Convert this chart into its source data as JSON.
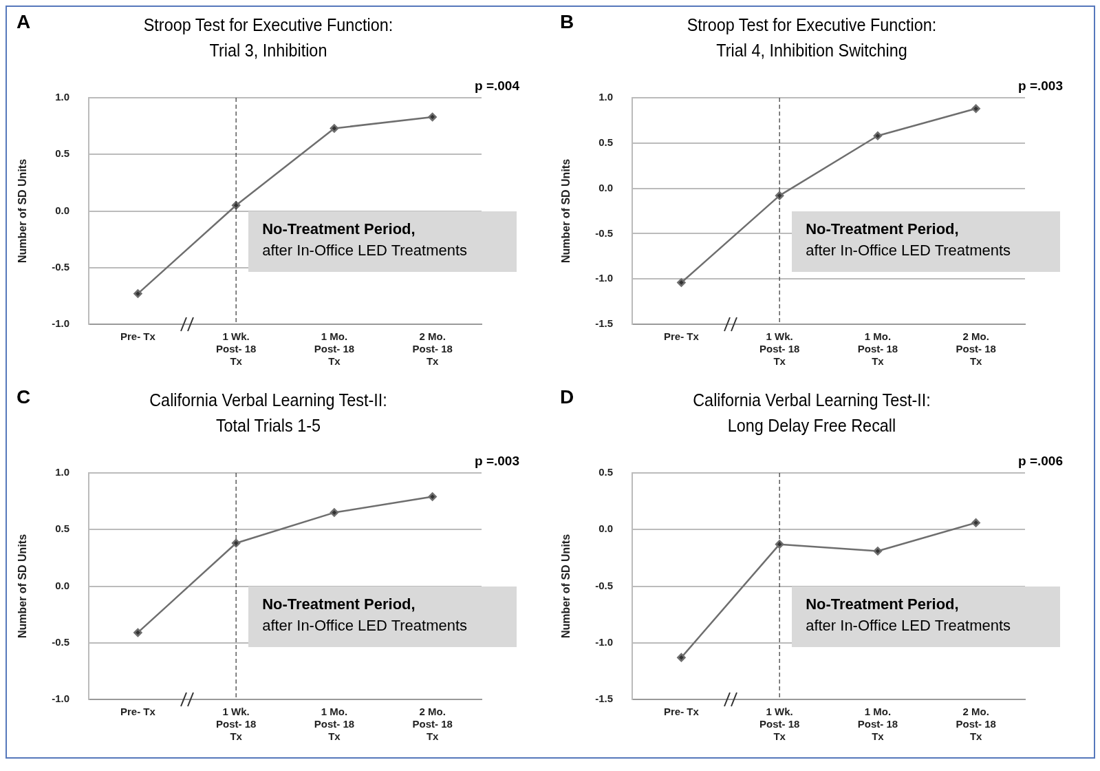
{
  "chart_data": [
    {
      "type": "line",
      "title": "Stroop Test for Executive Function:\nTrial 3, Inhibition",
      "ylabel": "Number of SD Units",
      "categories": [
        "Pre- Tx",
        "1 Wk. Post- 18 Tx",
        "1 Mo. Post- 18 Tx",
        "2 Mo. Post- 18 Tx"
      ],
      "series": [
        {
          "color": "#6e6e6e",
          "values": [
            -0.73,
            0.05,
            0.73,
            0.83
          ]
        }
      ],
      "ylim": [
        -1,
        1
      ],
      "yticks": [
        {
          "value": -1,
          "label": "-1.0"
        },
        {
          "value": -0.5,
          "label": "-0.5"
        },
        {
          "value": 0,
          "label": "0.0"
        },
        {
          "value": 0.5,
          "label": "0.5"
        },
        {
          "value": 1,
          "label": "1.0"
        }
      ],
      "grid": "y",
      "marker": "diamond",
      "ref_lines": [
        {
          "axis": "x",
          "value": "1 Wk. Post- 18 Tx",
          "color": "#333333",
          "line_style": "dashed"
        }
      ],
      "annotations": [
        "A",
        "p =.004",
        "No-Treatment Period,",
        "after In-Office LED Treatments"
      ]
    },
    {
      "type": "line",
      "title": "Stroop Test for Executive Function:\nTrial 4, Inhibition Switching",
      "ylabel": "Number of SD Units",
      "categories": [
        "Pre- Tx",
        "1 Wk. Post- 18 Tx",
        "1 Mo. Post- 18 Tx",
        "2 Mo. Post- 18 Tx"
      ],
      "series": [
        {
          "color": "#6e6e6e",
          "values": [
            -1.04,
            -0.08,
            0.58,
            0.88
          ]
        }
      ],
      "ylim": [
        -1.5,
        1
      ],
      "yticks": [
        {
          "value": -1.5,
          "label": "-1.5"
        },
        {
          "value": -1,
          "label": "-1.0"
        },
        {
          "value": -0.5,
          "label": "-0.5"
        },
        {
          "value": 0,
          "label": "0.0"
        },
        {
          "value": 0.5,
          "label": "0.5"
        },
        {
          "value": 1,
          "label": "1.0"
        }
      ],
      "grid": "y",
      "marker": "diamond",
      "ref_lines": [
        {
          "axis": "x",
          "value": "1 Wk. Post- 18 Tx",
          "color": "#333333",
          "line_style": "dashed"
        }
      ],
      "annotations": [
        "B",
        "p =.003",
        "No-Treatment Period,",
        "after In-Office LED Treatments"
      ]
    },
    {
      "type": "line",
      "title": "California Verbal Learning Test-II:\nTotal Trials 1-5",
      "ylabel": "Number of SD Units",
      "categories": [
        "Pre- Tx",
        "1 Wk. Post- 18 Tx",
        "1 Mo. Post- 18 Tx",
        "2 Mo. Post- 18 Tx"
      ],
      "series": [
        {
          "color": "#6e6e6e",
          "values": [
            -0.41,
            0.38,
            0.65,
            0.79
          ]
        }
      ],
      "ylim": [
        -1,
        1
      ],
      "yticks": [
        {
          "value": -1,
          "label": "-1.0"
        },
        {
          "value": -0.5,
          "label": "-0.5"
        },
        {
          "value": 0,
          "label": "0.0"
        },
        {
          "value": 0.5,
          "label": "0.5"
        },
        {
          "value": 1,
          "label": "1.0"
        }
      ],
      "grid": "y",
      "marker": "diamond",
      "ref_lines": [
        {
          "axis": "x",
          "value": "1 Wk. Post- 18 Tx",
          "color": "#333333",
          "line_style": "dashed"
        }
      ],
      "annotations": [
        "C",
        "p =.003",
        "No-Treatment Period,",
        "after In-Office LED Treatments"
      ]
    },
    {
      "type": "line",
      "title": "California Verbal Learning Test-II:\nLong Delay Free Recall",
      "ylabel": "Number of SD Units",
      "categories": [
        "Pre- Tx",
        "1 Wk. Post- 18 Tx",
        "1 Mo. Post- 18 Tx",
        "2 Mo. Post- 18 Tx"
      ],
      "series": [
        {
          "color": "#6e6e6e",
          "values": [
            -1.13,
            -0.13,
            -0.19,
            0.06
          ]
        }
      ],
      "ylim": [
        -1.5,
        0.5
      ],
      "yticks": [
        {
          "value": -1.5,
          "label": "-1.5"
        },
        {
          "value": -1,
          "label": "-1.0"
        },
        {
          "value": -0.5,
          "label": "-0.5"
        },
        {
          "value": 0,
          "label": "0.0"
        },
        {
          "value": 0.5,
          "label": "0.5"
        }
      ],
      "grid": "y",
      "marker": "diamond",
      "ref_lines": [
        {
          "axis": "x",
          "value": "1 Wk. Post- 18 Tx",
          "color": "#333333",
          "line_style": "dashed"
        }
      ],
      "annotations": [
        "D",
        "p =.006",
        "No-Treatment Period,",
        "after In-Office LED Treatments"
      ]
    }
  ]
}
